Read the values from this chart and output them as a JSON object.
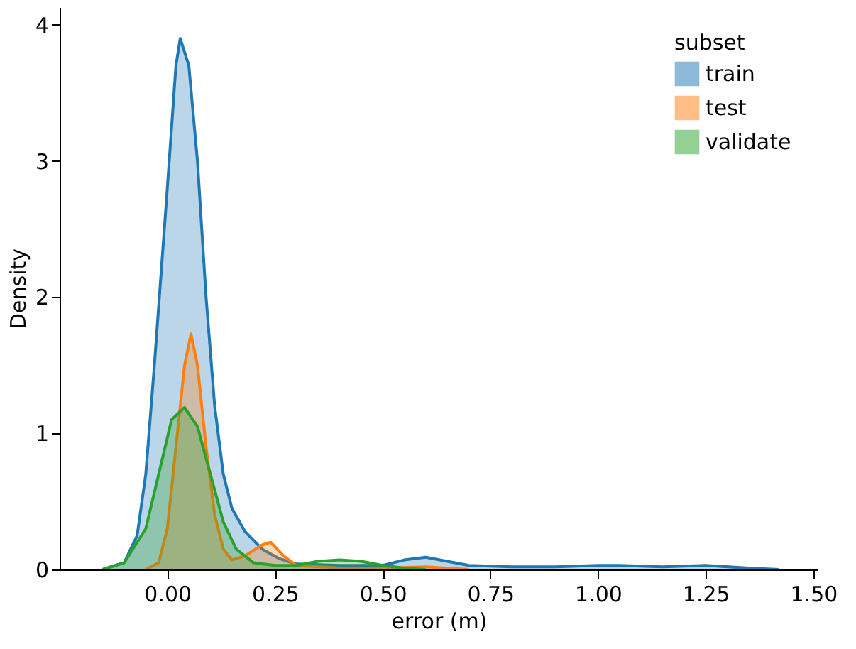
{
  "chart_data": {
    "type": "area",
    "xlabel": "error (m)",
    "ylabel": "Density",
    "legend_title": "subset",
    "legend": "top right",
    "grid": false,
    "xlim": [
      -0.25,
      1.51
    ],
    "xticks": [
      {
        "value": 0,
        "label": "0.00"
      },
      0.25,
      {
        "value": 0.5,
        "label": "0.50"
      },
      0.75,
      {
        "value": 1,
        "label": "1.00"
      },
      1.25,
      {
        "value": 1.5,
        "label": "1.50"
      }
    ],
    "ylim": [
      0,
      4.13
    ],
    "yticks": [
      0,
      1,
      2,
      3,
      4
    ],
    "series": [
      {
        "name": "train",
        "color": "#1f77b4",
        "x": [
          -0.15,
          -0.1,
          -0.07,
          -0.05,
          -0.03,
          0,
          0.02,
          0.03,
          0.05,
          0.07,
          0.09,
          0.11,
          0.13,
          0.15,
          0.18,
          0.22,
          0.26,
          0.3,
          0.4,
          0.5,
          0.55,
          0.6,
          0.65,
          0.7,
          0.8,
          0.9,
          1.0,
          1.05,
          1.15,
          1.25,
          1.35,
          1.42
        ],
        "values": [
          0,
          0.05,
          0.25,
          0.7,
          1.5,
          2.8,
          3.7,
          3.9,
          3.7,
          3.0,
          2.0,
          1.2,
          0.7,
          0.45,
          0.28,
          0.15,
          0.08,
          0.04,
          0.03,
          0.03,
          0.07,
          0.09,
          0.06,
          0.03,
          0.02,
          0.02,
          0.03,
          0.03,
          0.02,
          0.03,
          0.01,
          0
        ]
      },
      {
        "name": "test",
        "color": "#ff7f0e",
        "x": [
          -0.05,
          -0.02,
          0,
          0.02,
          0.04,
          0.055,
          0.07,
          0.09,
          0.11,
          0.13,
          0.15,
          0.18,
          0.22,
          0.24,
          0.27,
          0.3,
          0.4,
          0.5,
          0.6,
          0.7
        ],
        "values": [
          0,
          0.05,
          0.3,
          0.9,
          1.5,
          1.73,
          1.5,
          0.9,
          0.4,
          0.15,
          0.07,
          0.1,
          0.18,
          0.2,
          0.1,
          0.03,
          0.01,
          0.01,
          0.02,
          0
        ]
      },
      {
        "name": "validate",
        "color": "#2ca02c",
        "x": [
          -0.15,
          -0.1,
          -0.05,
          -0.02,
          0.01,
          0.04,
          0.07,
          0.1,
          0.13,
          0.16,
          0.2,
          0.25,
          0.3,
          0.35,
          0.4,
          0.45,
          0.5,
          0.55,
          0.6
        ],
        "values": [
          0,
          0.05,
          0.3,
          0.7,
          1.1,
          1.19,
          1.05,
          0.7,
          0.35,
          0.15,
          0.05,
          0.03,
          0.03,
          0.06,
          0.07,
          0.06,
          0.03,
          0.01,
          0
        ]
      }
    ]
  }
}
